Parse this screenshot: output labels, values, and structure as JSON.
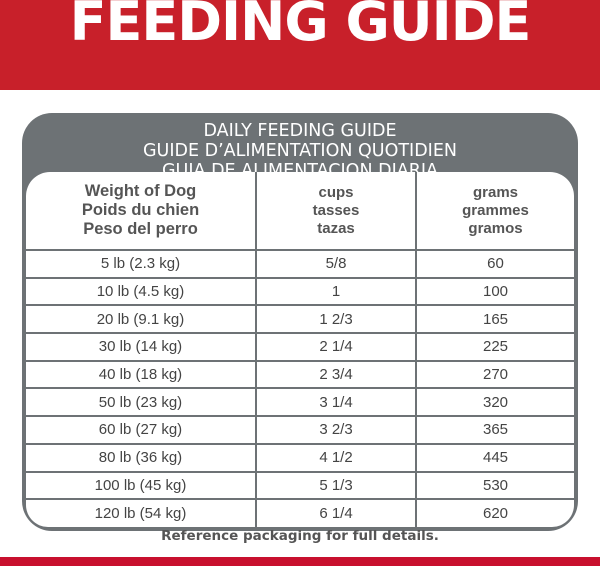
{
  "banner_title": "FEEDING GUIDE",
  "table_title": [
    "DAILY FEEDING GUIDE",
    "GUIDE D’ALIMENTATION QUOTIDIEN",
    "GUIA DE ALIMENTACION DIARIA"
  ],
  "headers": [
    [
      "Weight of Dog",
      "Poids du chien",
      "Peso del perro"
    ],
    [
      "cups",
      "tasses",
      "tazas"
    ],
    [
      "grams",
      "grammes",
      "gramos"
    ]
  ],
  "rows": [
    {
      "weight": "5 lb (2.3 kg)",
      "cups": "5/8",
      "grams": "60"
    },
    {
      "weight": "10 lb (4.5 kg)",
      "cups": "1",
      "grams": "100"
    },
    {
      "weight": "20 lb (9.1 kg)",
      "cups": "1 2/3",
      "grams": "165"
    },
    {
      "weight": "30 lb (14 kg)",
      "cups": "2 1/4",
      "grams": "225"
    },
    {
      "weight": "40 lb (18 kg)",
      "cups": "2 3/4",
      "grams": "270"
    },
    {
      "weight": "50 lb (23 kg)",
      "cups": "3 1/4",
      "grams": "320"
    },
    {
      "weight": "60 lb (27 kg)",
      "cups": "3 2/3",
      "grams": "365"
    },
    {
      "weight": "80 lb (36 kg)",
      "cups": "4 1/2",
      "grams": "445"
    },
    {
      "weight": "100 lb (45 kg)",
      "cups": "5 1/3",
      "grams": "530"
    },
    {
      "weight": "120 lb (54 kg)",
      "cups": "6 1/4",
      "grams": "620"
    }
  ],
  "footer": "Reference packaging for full details.",
  "colors": {
    "brand_red": "#c8202a",
    "table_gray": "#6d7275"
  }
}
